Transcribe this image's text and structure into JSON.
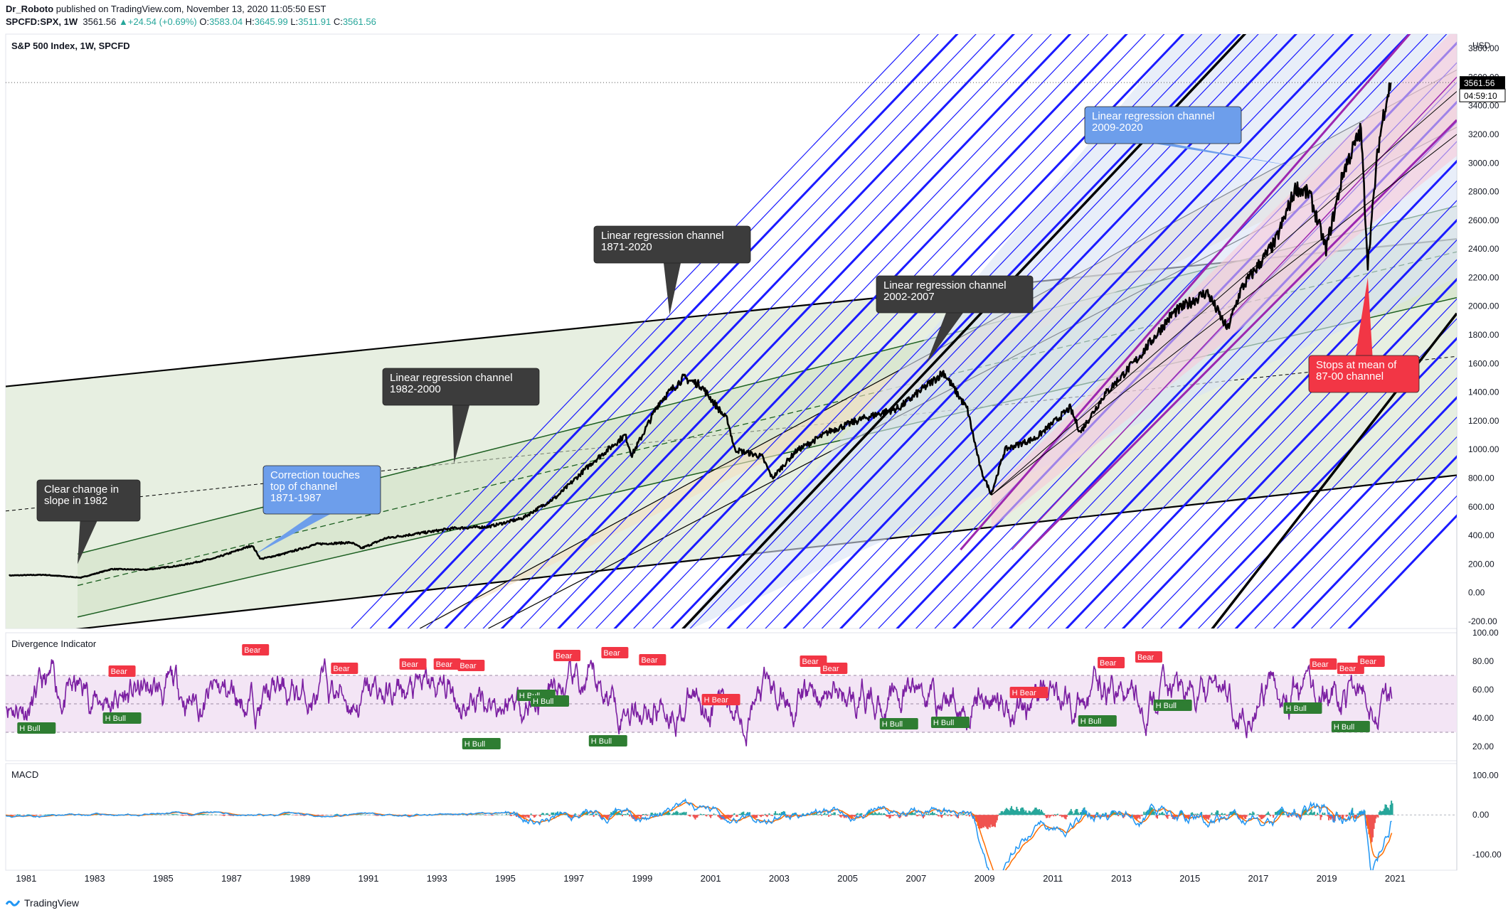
{
  "header": {
    "author": "Dr_Roboto",
    "published": "published on TradingView.com, November 13, 2020 11:05:50 EST",
    "symbol": "SPCFD:SPX, 1W",
    "last": "3561.56",
    "change": "+24.54 (+0.69%)",
    "open_label": "O:",
    "open": "3583.04",
    "high_label": "H:",
    "high": "3645.99",
    "low_label": "L:",
    "low": "3511.91",
    "close_label": "C:",
    "close": "3561.56"
  },
  "footer": {
    "brand": "TradingView"
  },
  "colors": {
    "up": "#26a69a",
    "down": "#ef5350",
    "price": "#000000",
    "blue_channel": "#1a1aff",
    "purple_channel": "#9c27b0",
    "green_fill": "#e3ecdc",
    "blue_fill": "#d8e2f5",
    "callout_dark": "#3c3c3c",
    "callout_blue": "#6d9eeb",
    "callout_red": "#f23645",
    "rsi": "#7b1fa2",
    "rsi_band": "#f3e5f5",
    "macd": "#2196f3",
    "signal": "#ff6d00"
  },
  "chart_data": [
    {
      "type": "line",
      "title": "S&P 500 Index, 1W, SPCFD",
      "currency": "USD",
      "x_ticks": [
        "1981",
        "1983",
        "1985",
        "1987",
        "1989",
        "1991",
        "1993",
        "1995",
        "1997",
        "1999",
        "2001",
        "2003",
        "2005",
        "2007",
        "2009",
        "2011",
        "2013",
        "2015",
        "2017",
        "2019",
        "2021"
      ],
      "y_ticks": [
        -200,
        0,
        200,
        400,
        600,
        800,
        1000,
        1200,
        1400,
        1600,
        1800,
        2000,
        2200,
        2400,
        2600,
        2800,
        3000,
        3200,
        3400,
        3600,
        3800
      ],
      "ylim": [
        -250,
        3900
      ],
      "xlim": [
        1980.4,
        2022.8
      ],
      "last_price_label": "3561.56",
      "countdown_label": "04:59:10",
      "series": [
        {
          "name": "SPX",
          "x": [
            1980.5,
            1981.5,
            1982.6,
            1983.5,
            1984.5,
            1985.5,
            1986.5,
            1987.6,
            1987.85,
            1988.5,
            1989.5,
            1990.5,
            1990.8,
            1991.5,
            1992.5,
            1993.5,
            1994.5,
            1995.5,
            1996.5,
            1997.5,
            1998.5,
            1998.7,
            1999.5,
            2000.2,
            2000.7,
            2001.5,
            2001.7,
            2002.5,
            2002.8,
            2003.5,
            2004.5,
            2005.5,
            2006.5,
            2007.5,
            2007.8,
            2008.5,
            2008.9,
            2009.2,
            2009.6,
            2010.5,
            2011.5,
            2011.8,
            2012.5,
            2013.5,
            2014.5,
            2015.5,
            2016.1,
            2016.5,
            2017.5,
            2018.1,
            2018.5,
            2018.98,
            2019.5,
            2020.0,
            2020.2,
            2020.5,
            2020.7,
            2020.87
          ],
          "values": [
            120,
            125,
            105,
            165,
            160,
            190,
            240,
            330,
            235,
            270,
            340,
            350,
            310,
            380,
            415,
            450,
            460,
            520,
            670,
            900,
            1100,
            960,
            1330,
            1500,
            1450,
            1200,
            1000,
            950,
            800,
            990,
            1130,
            1220,
            1290,
            1480,
            1540,
            1280,
            850,
            690,
            1000,
            1080,
            1290,
            1120,
            1380,
            1640,
            1950,
            2100,
            1840,
            2120,
            2450,
            2830,
            2780,
            2400,
            2950,
            3230,
            2300,
            3100,
            3400,
            3561.56
          ]
        }
      ]
    },
    {
      "type": "line",
      "title": "Divergence Indicator",
      "y_ticks": [
        20,
        40,
        60,
        80,
        100
      ],
      "ylim": [
        10,
        100
      ],
      "band": [
        30,
        70
      ],
      "markers": [
        {
          "label": "H Bull",
          "x": 1981.3,
          "y": 33,
          "kind": "bull"
        },
        {
          "label": "Bear",
          "x": 1983.8,
          "y": 73,
          "kind": "bear"
        },
        {
          "label": "H Bull",
          "x": 1983.8,
          "y": 40,
          "kind": "bull"
        },
        {
          "label": "Bear",
          "x": 1987.7,
          "y": 88,
          "kind": "bear"
        },
        {
          "label": "Bear",
          "x": 1990.3,
          "y": 75,
          "kind": "bear"
        },
        {
          "label": "Bear",
          "x": 1992.3,
          "y": 78,
          "kind": "bear"
        },
        {
          "label": "Bear",
          "x": 1993.3,
          "y": 78,
          "kind": "bear"
        },
        {
          "label": "Bear",
          "x": 1994.0,
          "y": 77,
          "kind": "bear"
        },
        {
          "label": "H Bull",
          "x": 1994.3,
          "y": 22,
          "kind": "bull"
        },
        {
          "label": "H Bull",
          "x": 1995.9,
          "y": 56,
          "kind": "bull"
        },
        {
          "label": "H Bull",
          "x": 1996.3,
          "y": 52,
          "kind": "bull"
        },
        {
          "label": "Bear",
          "x": 1996.8,
          "y": 84,
          "kind": "bear"
        },
        {
          "label": "Bear",
          "x": 1998.2,
          "y": 86,
          "kind": "bear"
        },
        {
          "label": "Bear",
          "x": 1999.3,
          "y": 81,
          "kind": "bear"
        },
        {
          "label": "H Bull",
          "x": 1998.0,
          "y": 24,
          "kind": "bull"
        },
        {
          "label": "H Bear",
          "x": 2001.3,
          "y": 53,
          "kind": "bear"
        },
        {
          "label": "Bear",
          "x": 2004.0,
          "y": 80,
          "kind": "bear"
        },
        {
          "label": "Bear",
          "x": 2004.6,
          "y": 75,
          "kind": "bear"
        },
        {
          "label": "H Bull",
          "x": 2006.5,
          "y": 36,
          "kind": "bull"
        },
        {
          "label": "H Bull",
          "x": 2008.0,
          "y": 37,
          "kind": "bull"
        },
        {
          "label": "H Bear",
          "x": 2010.3,
          "y": 58,
          "kind": "bear"
        },
        {
          "label": "H Bull",
          "x": 2012.3,
          "y": 38,
          "kind": "bull"
        },
        {
          "label": "Bear",
          "x": 2012.7,
          "y": 79,
          "kind": "bear"
        },
        {
          "label": "Bear",
          "x": 2013.8,
          "y": 83,
          "kind": "bear"
        },
        {
          "label": "H Bull",
          "x": 2014.5,
          "y": 49,
          "kind": "bull"
        },
        {
          "label": "H Bull",
          "x": 2018.3,
          "y": 47,
          "kind": "bull"
        },
        {
          "label": "Bear",
          "x": 2018.9,
          "y": 78,
          "kind": "bear"
        },
        {
          "label": "H Bull",
          "x": 2019.7,
          "y": 34,
          "kind": "bull"
        },
        {
          "label": "Bear",
          "x": 2019.7,
          "y": 75,
          "kind": "bear"
        },
        {
          "label": "Bear",
          "x": 2020.3,
          "y": 80,
          "kind": "bear"
        }
      ]
    },
    {
      "type": "line",
      "title": "MACD",
      "y_ticks": [
        -100,
        0,
        100
      ],
      "ylim": [
        -140,
        130
      ]
    }
  ],
  "annotations": [
    {
      "text1": "Clear change in",
      "text2": "slope in 1982",
      "style": "dark"
    },
    {
      "text1": "Correction touches",
      "text2": "top of channel",
      "text3": "1871-1987",
      "style": "blue"
    },
    {
      "text1": "Linear regression channel",
      "text2": "1982-2000",
      "style": "dark"
    },
    {
      "text1": "Linear regression channel",
      "text2": "1871-2020",
      "style": "dark"
    },
    {
      "text1": "Linear regression channel",
      "text2": "2002-2007",
      "style": "dark"
    },
    {
      "text1": "Linear regression channel",
      "text2": "2009-2020",
      "style": "blue"
    },
    {
      "text1": "Stops at mean of",
      "text2": "87-00 channel",
      "style": "red"
    }
  ]
}
